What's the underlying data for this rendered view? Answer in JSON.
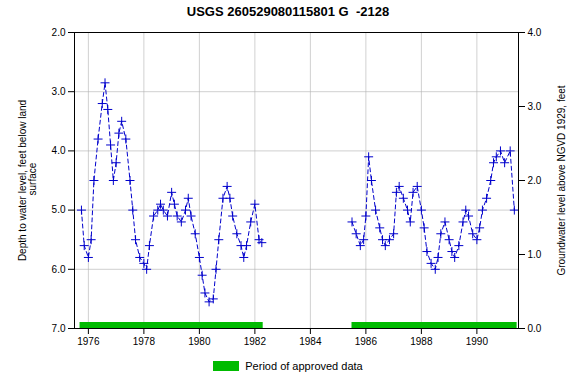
{
  "chart_data": {
    "type": "line",
    "title": "USGS 260529080115801 G  -2128",
    "ylabel": "Depth to water level, feet below land\n surface",
    "y2label": "Groundwater level above NGVD 1929, feet",
    "xlim": [
      1975.5,
      1991.5
    ],
    "xticks": [
      1976,
      1978,
      1980,
      1982,
      1984,
      1986,
      1988,
      1990
    ],
    "ylim": [
      7.0,
      2.0
    ],
    "yticks": [
      {
        "value": 2.0,
        "label": "2.0"
      },
      {
        "value": 3.0,
        "label": "3.0"
      },
      {
        "value": 4.0,
        "label": "4.0"
      },
      {
        "value": 5.0,
        "label": "5.0"
      },
      {
        "value": 6.0,
        "label": "6.0"
      },
      {
        "value": 7.0,
        "label": "7.0"
      }
    ],
    "y2lim": [
      0.0,
      4.0
    ],
    "y2ticks": [
      {
        "value": 0.0,
        "label": "0.0"
      },
      {
        "value": 1.0,
        "label": "1.0"
      },
      {
        "value": 2.0,
        "label": "2.0"
      },
      {
        "value": 3.0,
        "label": "3.0"
      },
      {
        "value": 4.0,
        "label": "4.0"
      }
    ],
    "grid": true,
    "legend": "bottom",
    "series": [
      {
        "type": "line",
        "color": "#0000cc",
        "line_style": "dashed",
        "marker": "plus",
        "x": [
          1975.75,
          1975.85,
          1976.0,
          1976.1,
          1976.2,
          1976.35,
          1976.5,
          1976.6,
          1976.7,
          1976.8,
          1976.9,
          1977.0,
          1977.1,
          1977.2,
          1977.35,
          1977.5,
          1977.6,
          1977.7,
          1977.85,
          1978.0,
          1978.1,
          1978.2,
          1978.35,
          1978.5,
          1978.6,
          1978.7,
          1978.85,
          1979.0,
          1979.1,
          1979.2,
          1979.35,
          1979.5,
          1979.6,
          1979.7,
          1979.85,
          1980.0,
          1980.1,
          1980.2,
          1980.35,
          1980.5,
          1980.6,
          1980.7,
          1980.85,
          1981.0,
          1981.1,
          1981.2,
          1981.35,
          1981.5,
          1981.6,
          1981.7,
          1981.85,
          1982.0,
          1982.15,
          1982.25
        ],
        "values": [
          5.0,
          5.6,
          5.8,
          5.5,
          4.5,
          3.8,
          3.2,
          2.85,
          3.3,
          3.9,
          4.5,
          4.2,
          3.7,
          3.5,
          3.8,
          4.5,
          5.0,
          5.5,
          5.8,
          5.9,
          6.0,
          5.6,
          5.1,
          5.0,
          4.9,
          5.0,
          5.1,
          4.7,
          4.9,
          5.1,
          5.2,
          5.0,
          4.8,
          5.1,
          5.4,
          5.8,
          6.1,
          6.4,
          6.55,
          6.5,
          6.0,
          5.5,
          4.8,
          4.6,
          4.8,
          5.1,
          5.4,
          5.6,
          5.8,
          5.6,
          5.2,
          4.9,
          5.5,
          5.55
        ]
      },
      {
        "type": "line",
        "color": "#0000cc",
        "line_style": "dashed",
        "marker": "plus",
        "x": [
          1985.5,
          1985.65,
          1985.8,
          1985.92,
          1986.0,
          1986.1,
          1986.2,
          1986.35,
          1986.5,
          1986.6,
          1986.7,
          1986.85,
          1987.0,
          1987.1,
          1987.2,
          1987.35,
          1987.5,
          1987.6,
          1987.7,
          1987.85,
          1988.0,
          1988.1,
          1988.2,
          1988.35,
          1988.5,
          1988.6,
          1988.7,
          1988.85,
          1989.0,
          1989.1,
          1989.2,
          1989.35,
          1989.5,
          1989.6,
          1989.7,
          1989.85,
          1990.0,
          1990.1,
          1990.2,
          1990.35,
          1990.5,
          1990.6,
          1990.7,
          1990.85,
          1991.0,
          1991.2,
          1991.35
        ],
        "values": [
          5.2,
          5.4,
          5.6,
          5.5,
          5.1,
          4.1,
          4.5,
          5.0,
          5.3,
          5.5,
          5.6,
          5.5,
          5.4,
          4.7,
          4.6,
          4.8,
          5.0,
          5.2,
          4.7,
          4.6,
          5.0,
          5.3,
          5.7,
          5.9,
          6.0,
          5.8,
          5.4,
          5.2,
          5.5,
          5.7,
          5.8,
          5.6,
          5.2,
          5.0,
          5.1,
          5.4,
          5.5,
          5.3,
          5.0,
          4.8,
          4.5,
          4.2,
          4.1,
          4.0,
          4.2,
          4.0,
          5.0
        ]
      },
      {
        "type": "span",
        "name": "Period of approved data",
        "color": "#00bb00",
        "values": [
          [
            1975.7,
            1982.3
          ],
          [
            1985.5,
            1991.45
          ]
        ]
      }
    ]
  }
}
